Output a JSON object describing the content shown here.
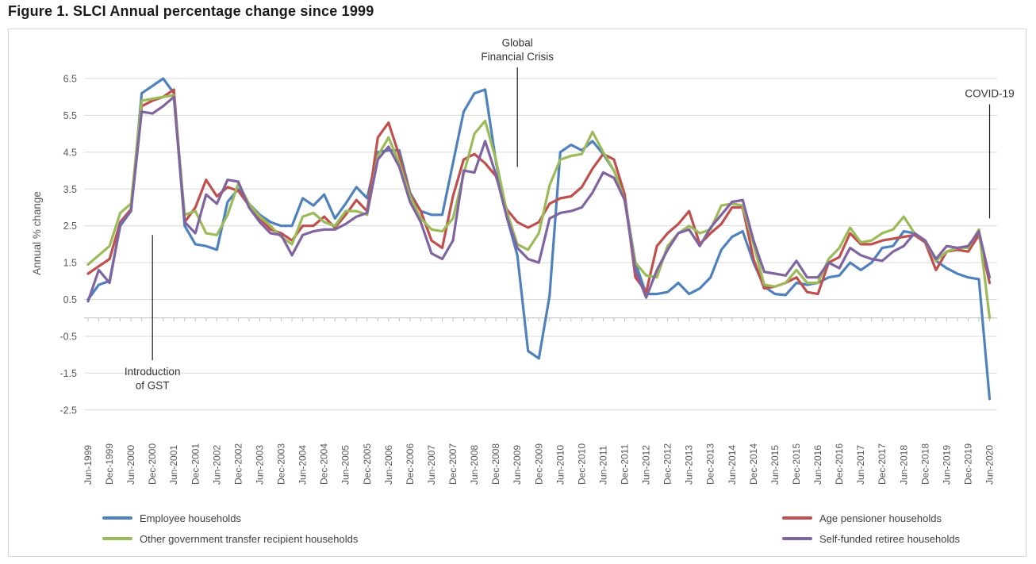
{
  "title": "Figure 1. SLCI Annual percentage change since 1999",
  "chart_data": {
    "type": "line",
    "title": "Figure 1. SLCI Annual percentage change since 1999",
    "xlabel": "",
    "ylabel": "Annual % change",
    "ylim": [
      -2.5,
      6.5
    ],
    "ytick_step": 1,
    "yticks": [
      6.5,
      5.5,
      4.5,
      3.5,
      2.5,
      1.5,
      0.5,
      -0.5,
      -1.5,
      -2.5
    ],
    "grid": "horizontal",
    "legend_position": "bottom",
    "x_label_every": 2,
    "x": [
      "Jun-1999",
      "Sep-1999",
      "Dec-1999",
      "Mar-2000",
      "Jun-2000",
      "Sep-2000",
      "Dec-2000",
      "Mar-2001",
      "Jun-2001",
      "Sep-2001",
      "Dec-2001",
      "Mar-2002",
      "Jun-2002",
      "Sep-2002",
      "Dec-2002",
      "Mar-2003",
      "Jun-2003",
      "Sep-2003",
      "Dec-2003",
      "Mar-2004",
      "Jun-2004",
      "Sep-2004",
      "Dec-2004",
      "Mar-2005",
      "Jun-2005",
      "Sep-2005",
      "Dec-2005",
      "Mar-2006",
      "Jun-2006",
      "Sep-2006",
      "Dec-2006",
      "Mar-2007",
      "Jun-2007",
      "Sep-2007",
      "Dec-2007",
      "Mar-2008",
      "Jun-2008",
      "Sep-2008",
      "Dec-2008",
      "Mar-2009",
      "Jun-2009",
      "Sep-2009",
      "Dec-2009",
      "Mar-2010",
      "Jun-2010",
      "Sep-2010",
      "Dec-2010",
      "Mar-2011",
      "Jun-2011",
      "Sep-2011",
      "Dec-2011",
      "Mar-2012",
      "Jun-2012",
      "Sep-2012",
      "Dec-2012",
      "Mar-2013",
      "Jun-2013",
      "Sep-2013",
      "Dec-2013",
      "Mar-2014",
      "Jun-2014",
      "Sep-2014",
      "Dec-2014",
      "Mar-2015",
      "Jun-2015",
      "Sep-2015",
      "Dec-2015",
      "Mar-2016",
      "Jun-2016",
      "Sep-2016",
      "Dec-2016",
      "Mar-2017",
      "Jun-2017",
      "Sep-2017",
      "Dec-2017",
      "Mar-2018",
      "Jun-2018",
      "Sep-2018",
      "Dec-2018",
      "Mar-2019",
      "Jun-2019",
      "Sep-2019",
      "Dec-2019",
      "Mar-2020",
      "Jun-2020"
    ],
    "series": [
      {
        "name": "Employee households",
        "color": "#4F81BD",
        "values": [
          0.5,
          0.9,
          1.0,
          2.5,
          2.9,
          6.1,
          6.3,
          6.5,
          6.1,
          2.5,
          2.0,
          1.95,
          1.85,
          3.15,
          3.5,
          3.1,
          2.8,
          2.6,
          2.5,
          2.5,
          3.25,
          3.05,
          3.35,
          2.7,
          3.1,
          3.55,
          3.25,
          4.5,
          4.55,
          4.55,
          3.4,
          2.9,
          2.8,
          2.8,
          4.2,
          5.6,
          6.1,
          6.2,
          4.25,
          2.75,
          1.7,
          -0.9,
          -1.1,
          0.6,
          4.5,
          4.7,
          4.55,
          4.8,
          4.45,
          4.0,
          3.25,
          1.5,
          0.65,
          0.65,
          0.7,
          0.95,
          0.65,
          0.8,
          1.1,
          1.85,
          2.2,
          2.35,
          1.5,
          0.85,
          0.65,
          0.62,
          0.95,
          0.9,
          0.95,
          1.1,
          1.15,
          1.5,
          1.3,
          1.5,
          1.9,
          1.95,
          2.35,
          2.3,
          2.05,
          1.55,
          1.35,
          1.2,
          1.1,
          1.05,
          -2.2
        ]
      },
      {
        "name": "Age pensioner households",
        "color": "#C0504D",
        "values": [
          1.2,
          1.4,
          1.6,
          2.6,
          2.95,
          5.75,
          5.9,
          6.0,
          6.2,
          2.6,
          3.0,
          3.75,
          3.3,
          3.55,
          3.45,
          3.05,
          2.7,
          2.4,
          2.3,
          2.1,
          2.5,
          2.5,
          2.75,
          2.45,
          2.8,
          3.2,
          2.9,
          4.9,
          5.3,
          4.4,
          3.35,
          2.9,
          2.1,
          1.9,
          3.3,
          4.3,
          4.45,
          4.2,
          3.85,
          2.95,
          2.6,
          2.45,
          2.6,
          3.1,
          3.25,
          3.3,
          3.55,
          4.05,
          4.45,
          4.3,
          3.35,
          1.1,
          0.7,
          1.95,
          2.3,
          2.55,
          2.9,
          2.0,
          2.3,
          2.55,
          3.0,
          3.0,
          1.6,
          0.8,
          0.85,
          0.95,
          1.1,
          0.7,
          0.65,
          1.5,
          1.65,
          2.3,
          2.0,
          2.0,
          2.1,
          2.15,
          2.2,
          2.25,
          2.05,
          1.3,
          1.8,
          1.85,
          1.8,
          2.25,
          0.95
        ]
      },
      {
        "name": "Other government transfer recipient households",
        "color": "#9BBB59",
        "values": [
          1.45,
          1.7,
          1.95,
          2.85,
          3.1,
          5.9,
          5.95,
          6.0,
          6.05,
          2.8,
          2.9,
          2.3,
          2.25,
          2.8,
          3.65,
          3.1,
          2.75,
          2.5,
          2.2,
          2.0,
          2.75,
          2.85,
          2.6,
          2.5,
          2.9,
          2.9,
          2.8,
          4.4,
          4.9,
          4.2,
          3.3,
          2.7,
          2.4,
          2.35,
          2.7,
          3.9,
          5.0,
          5.35,
          4.3,
          2.9,
          2.0,
          1.85,
          2.3,
          3.6,
          4.3,
          4.4,
          4.45,
          5.05,
          4.5,
          4.0,
          3.2,
          1.5,
          1.15,
          1.1,
          1.95,
          2.3,
          2.5,
          2.3,
          2.4,
          3.05,
          3.1,
          3.05,
          2.0,
          0.9,
          0.85,
          0.95,
          1.3,
          0.95,
          0.95,
          1.6,
          1.9,
          2.45,
          2.05,
          2.1,
          2.3,
          2.4,
          2.75,
          2.3,
          2.1,
          1.55,
          1.8,
          1.9,
          1.9,
          2.4,
          0.0
        ]
      },
      {
        "name": "Self-funded retiree households",
        "color": "#8064A2",
        "values": [
          0.45,
          1.3,
          0.95,
          2.55,
          2.9,
          5.6,
          5.55,
          5.75,
          6.0,
          2.6,
          2.3,
          3.35,
          3.1,
          3.75,
          3.7,
          3.0,
          2.6,
          2.3,
          2.25,
          1.7,
          2.25,
          2.35,
          2.4,
          2.4,
          2.55,
          2.75,
          2.85,
          4.3,
          4.65,
          4.1,
          3.15,
          2.6,
          1.75,
          1.6,
          2.1,
          4.0,
          3.95,
          4.8,
          3.9,
          2.75,
          1.9,
          1.6,
          1.5,
          2.7,
          2.85,
          2.9,
          3.0,
          3.4,
          3.95,
          3.8,
          3.2,
          1.3,
          0.55,
          1.3,
          1.85,
          2.3,
          2.4,
          1.95,
          2.45,
          2.8,
          3.15,
          3.2,
          2.1,
          1.25,
          1.2,
          1.15,
          1.55,
          1.1,
          1.1,
          1.5,
          1.35,
          1.9,
          1.7,
          1.6,
          1.55,
          1.8,
          1.95,
          2.3,
          2.1,
          1.6,
          1.95,
          1.9,
          1.95,
          2.35,
          1.1
        ]
      }
    ],
    "annotations": [
      {
        "id": "gst",
        "lines": [
          "Introduction",
          "of GST"
        ],
        "x": "Dec-2000",
        "line_top": 2.25,
        "line_bottom": -1.15,
        "text_side": "below"
      },
      {
        "id": "gfc",
        "lines": [
          "Global",
          "Financial Crisis"
        ],
        "x": "Jun-2009",
        "line_top": 6.8,
        "line_bottom": 4.1,
        "text_side": "above"
      },
      {
        "id": "covid",
        "lines": [
          "COVID-19"
        ],
        "x": "Jun-2020",
        "line_top": 5.8,
        "line_bottom": 2.7,
        "text_side": "above"
      }
    ]
  }
}
